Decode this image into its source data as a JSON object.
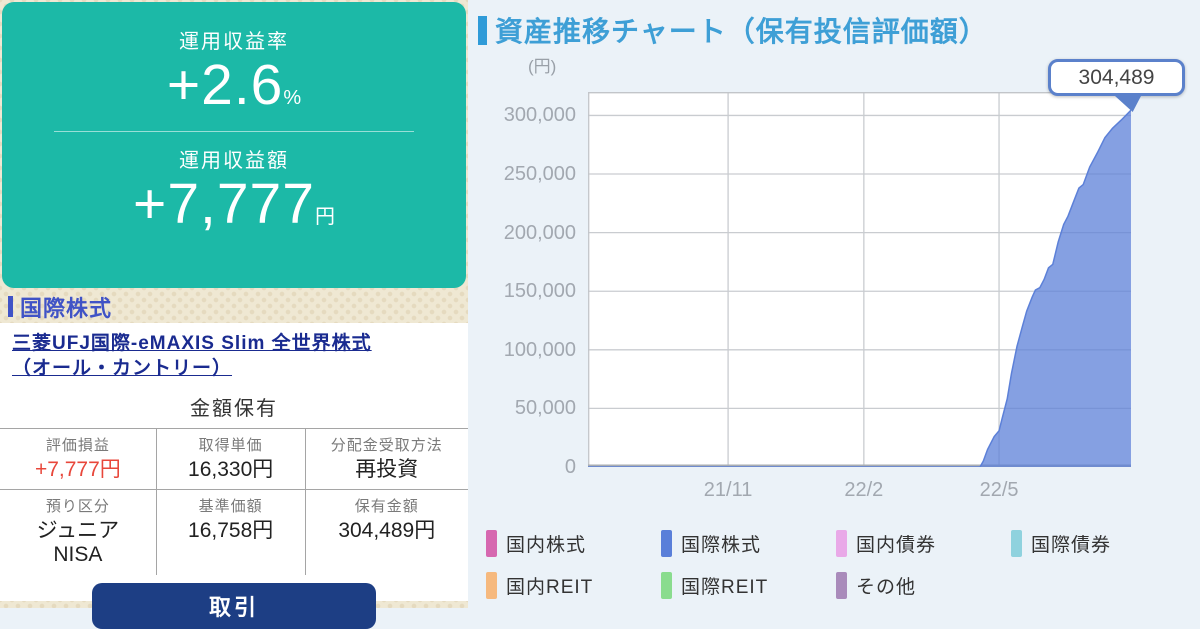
{
  "left_panel": {
    "summary_card": {
      "return_rate_label": "運用収益率",
      "return_rate_value": "+2.6",
      "return_rate_unit": "%",
      "return_amount_label": "運用収益額",
      "return_amount_value": "+7,777",
      "return_amount_unit": "円"
    },
    "section_header": "国際株式",
    "fund": {
      "name_line1": "三菱UFJ国際-eMAXIS Slim 全世界株式",
      "name_line2": "（オール・カントリー）",
      "holding_type": "金額保有",
      "table_cells": [
        {
          "label": "評価損益",
          "value": "+7,777円",
          "red": true
        },
        {
          "label": "取得単価",
          "value": "16,330円",
          "red": false
        },
        {
          "label": "分配金受取方法",
          "value": "再投資",
          "red": false
        },
        {
          "label": "預り区分",
          "value": "ジュニア\nNISA",
          "red": false
        },
        {
          "label": "基準価額",
          "value": "16,758円",
          "red": false
        },
        {
          "label": "保有金額",
          "value": "304,489円",
          "red": false
        }
      ],
      "trade_button_label": "取引"
    }
  },
  "right_panel": {
    "title": "資産推移チャート（保有投信評価額）",
    "y_axis_unit": "(円)",
    "tooltip_value": "304,489",
    "legend": [
      {
        "label": "国内株式",
        "color": "#D668B0"
      },
      {
        "label": "国際株式",
        "color": "#5A7FD9"
      },
      {
        "label": "国内債券",
        "color": "#E9A9E8"
      },
      {
        "label": "国際債券",
        "color": "#8FD2DE"
      },
      {
        "label": "国内REIT",
        "color": "#F6B97E"
      },
      {
        "label": "国際REIT",
        "color": "#8ADC8E"
      },
      {
        "label": "その他",
        "color": "#A98BBB"
      }
    ]
  },
  "colors": {
    "summary_card_teal": "#1CB9A7",
    "section_header_blue": "#4053C6",
    "fund_link_navy": "#1A2B90",
    "loss_gain_red": "#E8473B",
    "trade_button_navy": "#1D3E84",
    "chart_title_blue": "#3E9FD6",
    "area_fill_blue": "#5C80D8",
    "tooltip_border_blue": "#5B81CB"
  },
  "chart_data": {
    "type": "area",
    "title": "資産推移チャート（保有投信評価額）",
    "ylabel": "(円)",
    "ylim": [
      0,
      320000
    ],
    "yticks": [
      0,
      50000,
      100000,
      150000,
      200000,
      250000,
      300000
    ],
    "ytick_labels": [
      "0",
      "50,000",
      "100,000",
      "150,000",
      "200,000",
      "250,000",
      "300,000"
    ],
    "xticks": [
      {
        "label": "21/11",
        "t": 0.258
      },
      {
        "label": "22/2",
        "t": 0.508
      },
      {
        "label": "22/5",
        "t": 0.757
      }
    ],
    "grid": true,
    "legend_position": "bottom",
    "end_point_label": "304,489",
    "series": [
      {
        "name": "国際株式",
        "fill": "#5C80D8",
        "fill_opacity": 0.75,
        "points_t_value": [
          [
            0.0,
            0
          ],
          [
            0.7,
            0
          ],
          [
            0.722,
            0
          ],
          [
            0.728,
            5000
          ],
          [
            0.736,
            15000
          ],
          [
            0.748,
            26000
          ],
          [
            0.757,
            31000
          ],
          [
            0.763,
            42000
          ],
          [
            0.772,
            58000
          ],
          [
            0.78,
            80000
          ],
          [
            0.79,
            103000
          ],
          [
            0.8,
            120000
          ],
          [
            0.808,
            133000
          ],
          [
            0.818,
            145000
          ],
          [
            0.824,
            151000
          ],
          [
            0.832,
            153000
          ],
          [
            0.84,
            160000
          ],
          [
            0.848,
            170000
          ],
          [
            0.856,
            173000
          ],
          [
            0.866,
            192000
          ],
          [
            0.876,
            207000
          ],
          [
            0.884,
            214000
          ],
          [
            0.894,
            226000
          ],
          [
            0.904,
            238000
          ],
          [
            0.912,
            241000
          ],
          [
            0.924,
            256000
          ],
          [
            0.938,
            268000
          ],
          [
            0.952,
            281000
          ],
          [
            0.966,
            289000
          ],
          [
            0.982,
            296000
          ],
          [
            1.0,
            304489
          ]
        ]
      }
    ]
  }
}
